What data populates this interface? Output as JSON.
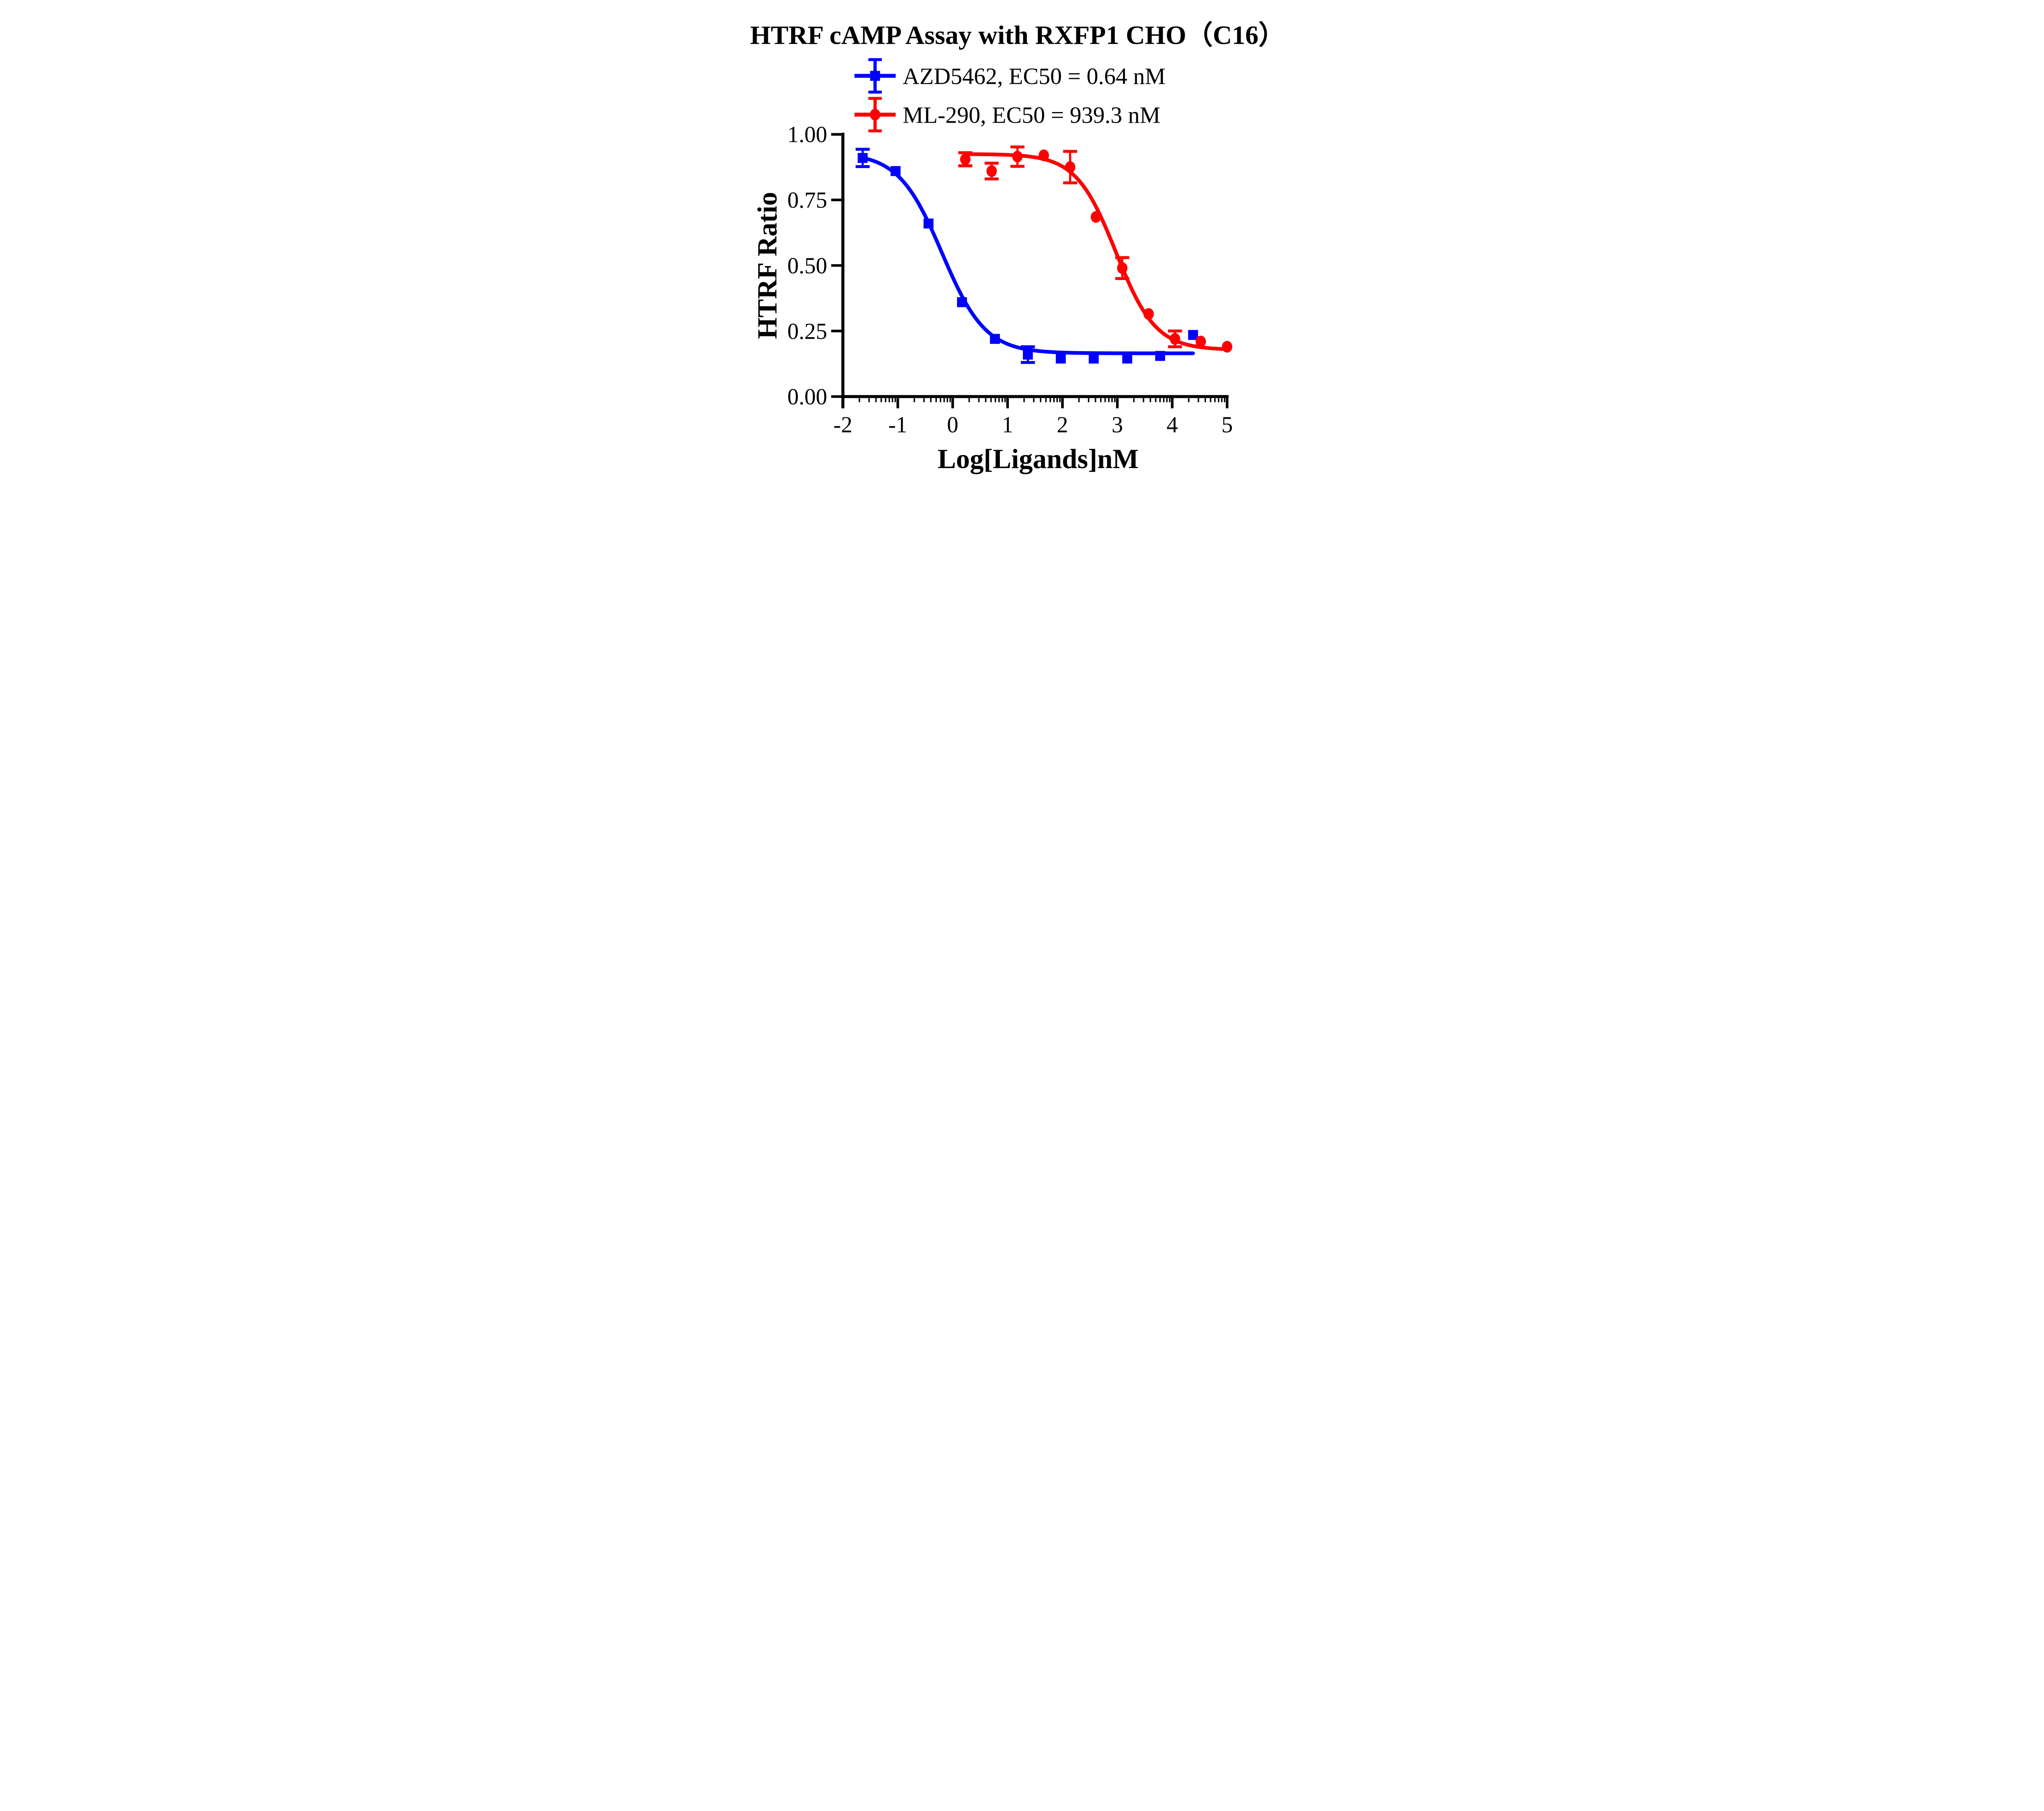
{
  "chart_data": {
    "type": "scatter",
    "chart_kind": "dose-response curves with sigmoidal (4PL) fits and error bars",
    "title": "HTRF cAMP Assay with RXFP1 CHO（C16）",
    "xlabel": "Log[Ligands]nM",
    "ylabel": "HTRF Ratio",
    "xlim": [
      -2,
      5
    ],
    "ylim": [
      0.0,
      1.0
    ],
    "x_tick_values": [
      -2,
      -1,
      0,
      1,
      2,
      3,
      4,
      5
    ],
    "x_tick_labels": [
      "-2",
      "-1",
      "0",
      "1",
      "2",
      "3",
      "4",
      "5"
    ],
    "y_tick_values": [
      0.0,
      0.25,
      0.5,
      0.75,
      1.0
    ],
    "y_tick_labels": [
      "0.00",
      "0.25",
      "0.50",
      "0.75",
      "1.00"
    ],
    "log_minor_ticks": true,
    "grid": false,
    "legend_position": "top-center",
    "colors": {
      "axis": "#000000",
      "text": "#000000",
      "background": "#FFFFFF",
      "series_blue": "#0000FF",
      "series_red": "#FF0000"
    },
    "series": [
      {
        "name": "AZD5462",
        "legend_label": "AZD5462, EC50 = 0.64 nM",
        "ec50_nM": 0.64,
        "color": "#0000FF",
        "marker": "square",
        "x": [
          -1.64,
          -1.04,
          -0.44,
          0.17,
          0.77,
          1.37,
          1.97,
          2.57,
          3.18,
          3.78,
          4.38
        ],
        "y": [
          0.91,
          0.86,
          0.66,
          0.36,
          0.22,
          0.16,
          0.145,
          0.145,
          0.145,
          0.155,
          0.235
        ],
        "err": [
          0.033,
          0,
          0,
          0,
          0,
          0.03,
          0,
          0,
          0,
          0,
          0
        ],
        "fit_4pl": {
          "top": 0.93,
          "bottom": 0.165,
          "logEC50": -0.194,
          "hill": 1.1
        }
      },
      {
        "name": "ML-290",
        "legend_label": "ML-290, EC50 = 939.3 nM",
        "ec50_nM": 939.3,
        "color": "#FF0000",
        "marker": "circle",
        "x": [
          0.23,
          0.71,
          1.18,
          1.66,
          2.14,
          2.61,
          3.09,
          3.57,
          4.05,
          4.52,
          5.0
        ],
        "y": [
          0.905,
          0.86,
          0.915,
          0.92,
          0.875,
          0.685,
          0.49,
          0.315,
          0.22,
          0.21,
          0.19
        ],
        "err": [
          0.025,
          0.03,
          0.037,
          0,
          0.06,
          0,
          0.04,
          0,
          0.03,
          0,
          0
        ],
        "fit_4pl": {
          "top": 0.925,
          "bottom": 0.178,
          "logEC50": 2.973,
          "hill": 1.2
        }
      }
    ]
  }
}
